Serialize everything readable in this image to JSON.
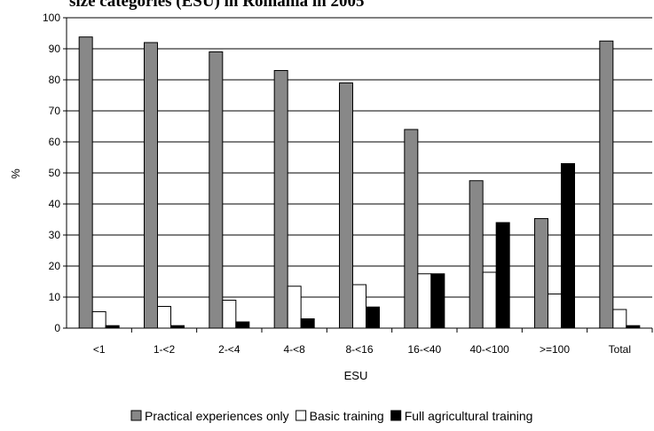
{
  "chart_data": {
    "type": "bar",
    "title": "size categories (ESU) in Romania in 2005",
    "xlabel": "ESU",
    "ylabel": "%",
    "ylim": [
      0,
      100
    ],
    "y_ticks": [
      "0",
      "10",
      "20",
      "30",
      "40",
      "50",
      "60",
      "70",
      "80",
      "90",
      "100"
    ],
    "grid": true,
    "legend_position": "bottom",
    "categories": [
      "<1",
      "1-<2",
      "2-<4",
      "4-<8",
      "8-<16",
      "16-<40",
      "40-<100",
      ">=100",
      "Total"
    ],
    "series": [
      {
        "name": "Practical experiences only",
        "color": "#888888",
        "values": [
          93.8,
          92.0,
          89.0,
          83.0,
          79.0,
          64.0,
          47.5,
          35.3,
          92.5
        ]
      },
      {
        "name": "Basic training",
        "color": "#ffffff",
        "values": [
          5.3,
          7.0,
          9.0,
          13.5,
          14.0,
          17.5,
          18.0,
          11.0,
          6.0
        ]
      },
      {
        "name": "Full agricultural training",
        "color": "#000000",
        "values": [
          0.8,
          0.8,
          2.0,
          3.0,
          6.8,
          17.5,
          34.0,
          53.0,
          0.8
        ]
      }
    ]
  }
}
